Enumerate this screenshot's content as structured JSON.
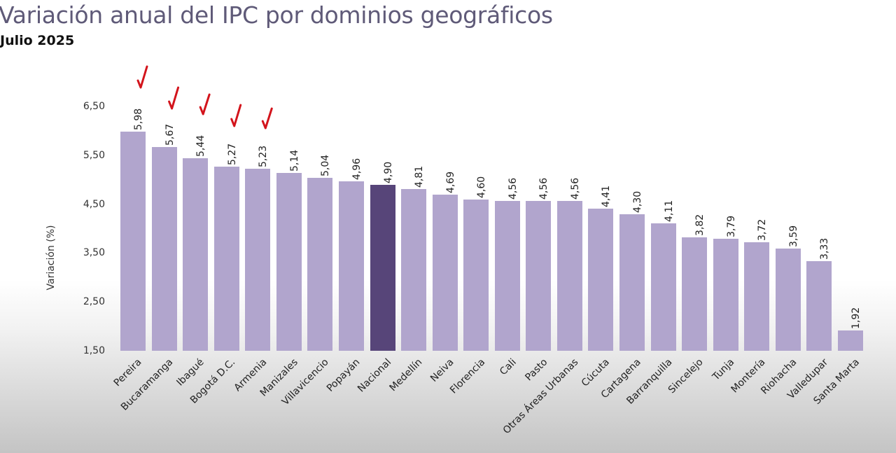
{
  "header": {
    "title": "Variación anual del IPC por dominios geográficos",
    "subtitle": "Julio 2025"
  },
  "axis": {
    "ylabel": "Variación (%)",
    "yticks": [
      "6,50",
      "5,50",
      "4,50",
      "3,50",
      "2,50",
      "1,50"
    ]
  },
  "colors": {
    "bar": "#b1a5cd",
    "highlight": "#574579",
    "check_marks": "#d3141c",
    "title": "#5f5a78"
  },
  "annotations": {
    "check_marks_on": [
      "Pereira",
      "Bucaramanga",
      "Ibagué",
      "Bogotá D.C.",
      "Armenia"
    ]
  },
  "bars": [
    {
      "label": "Pereira",
      "value": "5,98"
    },
    {
      "label": "Bucaramanga",
      "value": "5,67"
    },
    {
      "label": "Ibagué",
      "value": "5,44"
    },
    {
      "label": "Bogotá D.C.",
      "value": "5,27"
    },
    {
      "label": "Armenia",
      "value": "5,23"
    },
    {
      "label": "Manizales",
      "value": "5,14"
    },
    {
      "label": "Villavicencio",
      "value": "5,04"
    },
    {
      "label": "Popayán",
      "value": "4,96"
    },
    {
      "label": "Nacional",
      "value": "4,90"
    },
    {
      "label": "Medellín",
      "value": "4,81"
    },
    {
      "label": "Neiva",
      "value": "4,69"
    },
    {
      "label": "Florencia",
      "value": "4,60"
    },
    {
      "label": "Cali",
      "value": "4,56"
    },
    {
      "label": "Pasto",
      "value": "4,56"
    },
    {
      "label": "Otras Áreas Urbanas",
      "value": "4,56"
    },
    {
      "label": "Cúcuta",
      "value": "4,41"
    },
    {
      "label": "Cartagena",
      "value": "4,30"
    },
    {
      "label": "Barranquilla",
      "value": "4,11"
    },
    {
      "label": "Sincelejo",
      "value": "3,82"
    },
    {
      "label": "Tunja",
      "value": "3,79"
    },
    {
      "label": "Montería",
      "value": "3,72"
    },
    {
      "label": "Riohacha",
      "value": "3,59"
    },
    {
      "label": "Valledupar",
      "value": "3,33"
    },
    {
      "label": "Santa Marta",
      "value": "1,92"
    }
  ],
  "chart_data": {
    "type": "bar",
    "title": "Variación anual del IPC por dominios geográficos",
    "subtitle": "Julio 2025",
    "xlabel": "",
    "ylabel": "Variación (%)",
    "ylim": [
      1.5,
      6.5
    ],
    "yticks": [
      1.5,
      2.5,
      3.5,
      4.5,
      5.5,
      6.5
    ],
    "grid": false,
    "legend": null,
    "categories": [
      "Pereira",
      "Bucaramanga",
      "Ibagué",
      "Bogotá D.C.",
      "Armenia",
      "Manizales",
      "Villavicencio",
      "Popayán",
      "Nacional",
      "Medellín",
      "Neiva",
      "Florencia",
      "Cali",
      "Pasto",
      "Otras Áreas Urbanas",
      "Cúcuta",
      "Cartagena",
      "Barranquilla",
      "Sincelejo",
      "Tunja",
      "Montería",
      "Riohacha",
      "Valledupar",
      "Santa Marta"
    ],
    "values": [
      5.98,
      5.67,
      5.44,
      5.27,
      5.23,
      5.14,
      5.04,
      4.96,
      4.9,
      4.81,
      4.69,
      4.6,
      4.56,
      4.56,
      4.56,
      4.41,
      4.3,
      4.11,
      3.82,
      3.79,
      3.72,
      3.59,
      3.33,
      1.92
    ],
    "highlighted_category": "Nacional",
    "annotations": [
      "Red check marks above Pereira, Bucaramanga, Ibagué, Bogotá D.C., Armenia"
    ]
  }
}
